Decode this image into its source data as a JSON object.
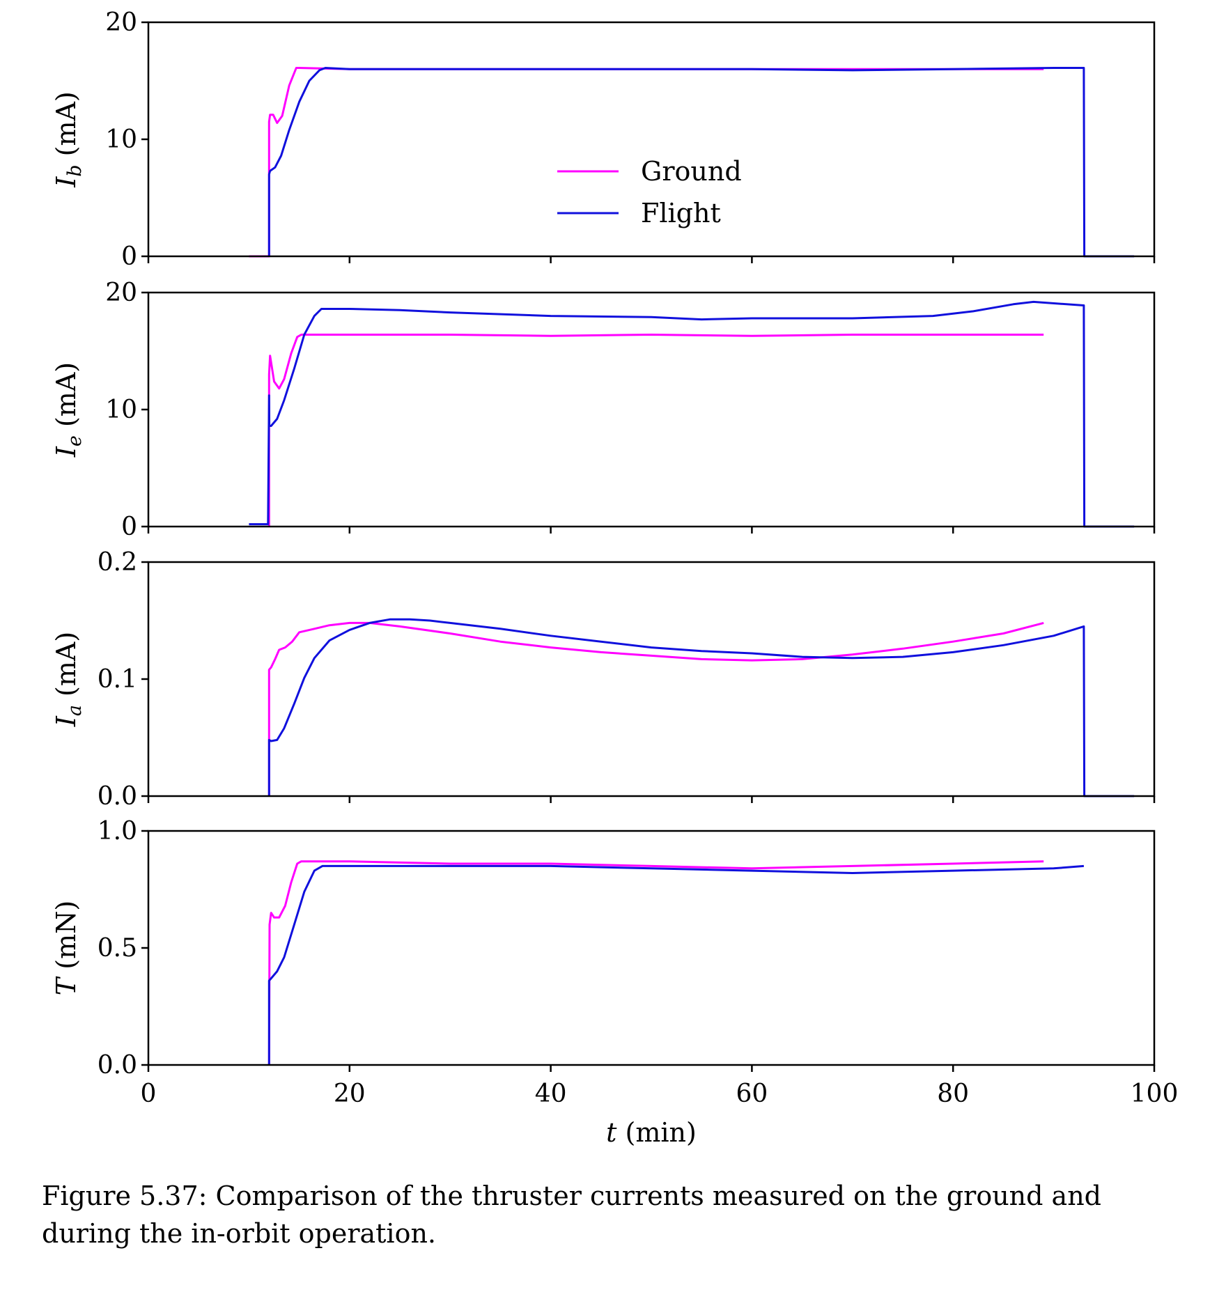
{
  "caption": "Figure 5.37: Comparison of the thruster currents measured on the ground and during the in-orbit operation.",
  "colors": {
    "ground": "#ff00ff",
    "flight": "#1010dd"
  },
  "chart_data": {
    "type": "line",
    "shared_xlabel": "t (min)",
    "xlim": [
      0,
      100
    ],
    "xticks": [
      0,
      20,
      40,
      60,
      80,
      100
    ],
    "xtick_labels": [
      "0",
      "20",
      "40",
      "60",
      "80",
      "100"
    ],
    "legend": {
      "placement": "center (top panel)",
      "entries": [
        "Ground",
        "Flight"
      ]
    },
    "panels": [
      {
        "id": "Ib",
        "ylabel": "I_b (mA)",
        "ylabel_symbol": "I",
        "ylabel_sub": "b",
        "ylabel_unit": "(mA)",
        "ylim": [
          0,
          20
        ],
        "yticks": [
          0,
          10,
          20
        ],
        "ytick_labels": [
          "0",
          "10",
          "20"
        ],
        "series": [
          {
            "name": "Ground",
            "color": "#ff00ff",
            "x": [
              10,
              12,
              12,
              12.1,
              12.4,
              12.8,
              13.3,
              14.0,
              14.7,
              15.0,
              20,
              30,
              40,
              50,
              60,
              70,
              80,
              89
            ],
            "y": [
              0,
              0,
              11.5,
              12.1,
              12.1,
              11.4,
              12.0,
              14.6,
              16.1,
              16.1,
              16.0,
              16.0,
              16.0,
              16.0,
              16.0,
              16.0,
              16.0,
              16.0
            ]
          },
          {
            "name": "Flight",
            "color": "#1010dd",
            "x": [
              12,
              12,
              12.1,
              12.6,
              13.2,
              14.0,
              15.0,
              16.0,
              17.0,
              17.6,
              20,
              30,
              40,
              50,
              60,
              70,
              80,
              90,
              93,
              93.05,
              98
            ],
            "y": [
              0,
              7.0,
              7.3,
              7.6,
              8.6,
              10.8,
              13.2,
              15.0,
              15.9,
              16.1,
              16.0,
              16.0,
              16.0,
              16.0,
              16.0,
              15.9,
              16.0,
              16.1,
              16.1,
              0,
              0
            ]
          }
        ]
      },
      {
        "id": "Ie",
        "ylabel": "I_e (mA)",
        "ylabel_symbol": "I",
        "ylabel_sub": "e",
        "ylabel_unit": "(mA)",
        "ylim": [
          0,
          20
        ],
        "yticks": [
          0,
          10,
          20
        ],
        "ytick_labels": [
          "0",
          "10",
          "20"
        ],
        "series": [
          {
            "name": "Ground",
            "color": "#ff00ff",
            "x": [
              12,
              12,
              12.1,
              12.5,
              13.0,
              13.5,
              14.2,
              14.8,
              15.2,
              20,
              30,
              40,
              50,
              60,
              70,
              80,
              89
            ],
            "y": [
              0,
              13.0,
              14.6,
              12.4,
              11.8,
              12.6,
              14.8,
              16.2,
              16.4,
              16.4,
              16.4,
              16.3,
              16.4,
              16.3,
              16.4,
              16.4,
              16.4
            ]
          },
          {
            "name": "Flight",
            "color": "#1010dd",
            "x": [
              10,
              11.9,
              12.0,
              12.02,
              12.2,
              12.8,
              13.5,
              14.5,
              15.5,
              16.5,
              17.2,
              20,
              25,
              30,
              40,
              50,
              55,
              60,
              70,
              78,
              82,
              86,
              88,
              93,
              93.05,
              98
            ],
            "y": [
              0.2,
              0.2,
              11.2,
              8.6,
              8.6,
              9.2,
              10.8,
              13.5,
              16.4,
              18.0,
              18.6,
              18.6,
              18.5,
              18.3,
              18.0,
              17.9,
              17.7,
              17.8,
              17.8,
              18.0,
              18.4,
              19.0,
              19.2,
              18.9,
              0,
              0
            ]
          }
        ]
      },
      {
        "id": "Ia",
        "ylabel": "I_a (mA)",
        "ylabel_symbol": "I",
        "ylabel_sub": "a",
        "ylabel_unit": "(mA)",
        "ylim": [
          0.0,
          0.2
        ],
        "yticks": [
          0.0,
          0.1,
          0.2
        ],
        "ytick_labels": [
          "0.0",
          "0.1",
          "0.2"
        ],
        "series": [
          {
            "name": "Ground",
            "color": "#ff00ff",
            "x": [
              12,
              12,
              12.2,
              12.6,
              13.0,
              13.6,
              14.3,
              15.0,
              16.5,
              18,
              20,
              22,
              25,
              30,
              35,
              40,
              45,
              50,
              55,
              60,
              65,
              70,
              75,
              80,
              85,
              89
            ],
            "y": [
              0,
              0.108,
              0.11,
              0.117,
              0.125,
              0.127,
              0.132,
              0.14,
              0.143,
              0.146,
              0.148,
              0.148,
              0.145,
              0.139,
              0.132,
              0.127,
              0.123,
              0.12,
              0.117,
              0.116,
              0.117,
              0.121,
              0.126,
              0.132,
              0.139,
              0.148
            ]
          },
          {
            "name": "Flight",
            "color": "#1010dd",
            "x": [
              12,
              12,
              12.2,
              12.8,
              13.5,
              14.5,
              15.5,
              16.5,
              18,
              20,
              22,
              24,
              26,
              28,
              30,
              35,
              40,
              45,
              50,
              55,
              60,
              65,
              70,
              75,
              80,
              85,
              90,
              93,
              93.05,
              98
            ],
            "y": [
              0,
              0.048,
              0.047,
              0.048,
              0.058,
              0.079,
              0.101,
              0.118,
              0.133,
              0.142,
              0.148,
              0.151,
              0.151,
              0.15,
              0.148,
              0.143,
              0.137,
              0.132,
              0.127,
              0.124,
              0.122,
              0.119,
              0.118,
              0.119,
              0.123,
              0.129,
              0.137,
              0.145,
              0,
              0
            ]
          }
        ]
      },
      {
        "id": "T",
        "ylabel": "T (mN)",
        "ylabel_symbol": "T",
        "ylabel_sub": "",
        "ylabel_unit": "(mN)",
        "ylim": [
          0.0,
          1.0
        ],
        "yticks": [
          0.0,
          0.5,
          1.0
        ],
        "ytick_labels": [
          "0.0",
          "0.5",
          "1.0"
        ],
        "series": [
          {
            "name": "Ground",
            "color": "#ff00ff",
            "x": [
              12,
              12.05,
              12.2,
              12.5,
              13.0,
              13.6,
              14.2,
              14.8,
              15.2,
              20,
              30,
              40,
              50,
              60,
              70,
              80,
              89
            ],
            "y": [
              0,
              0.6,
              0.65,
              0.63,
              0.63,
              0.68,
              0.78,
              0.86,
              0.87,
              0.87,
              0.86,
              0.86,
              0.85,
              0.84,
              0.85,
              0.86,
              0.87
            ]
          },
          {
            "name": "Flight",
            "color": "#1010dd",
            "x": [
              12,
              12,
              12.2,
              12.8,
              13.5,
              14.5,
              15.5,
              16.5,
              17.3,
              20,
              30,
              40,
              50,
              60,
              70,
              80,
              90,
              93
            ],
            "y": [
              0,
              0.36,
              0.37,
              0.4,
              0.46,
              0.6,
              0.74,
              0.83,
              0.85,
              0.85,
              0.85,
              0.85,
              0.84,
              0.83,
              0.82,
              0.83,
              0.84,
              0.85
            ]
          }
        ]
      }
    ]
  }
}
